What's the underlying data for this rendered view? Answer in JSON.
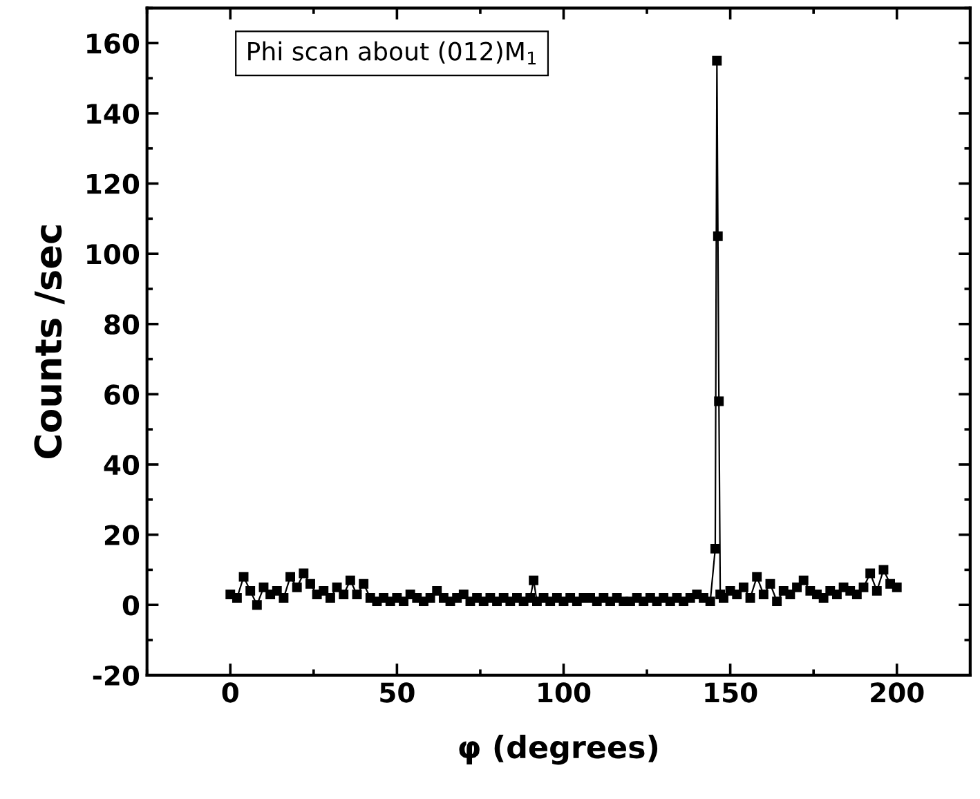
{
  "chart_data": {
    "type": "line",
    "xlabel": "φ (degrees)",
    "ylabel": "Counts /sec",
    "annotations": [
      "Phi scan about (012)M$_{1}$"
    ],
    "xlim": [
      -25,
      222
    ],
    "xticks": [
      0,
      50,
      100,
      150,
      200
    ],
    "ylim": [
      -20,
      170
    ],
    "yticks": [
      -20,
      0,
      20,
      40,
      60,
      80,
      100,
      120,
      140,
      160
    ],
    "grid": false,
    "legend": false,
    "marker": "square",
    "line_style": "solid",
    "series": [
      {
        "color": "#000000",
        "x": [
          0,
          2,
          4,
          6,
          8,
          10,
          12,
          14,
          16,
          18,
          20,
          22,
          24,
          26,
          28,
          30,
          32,
          34,
          36,
          38,
          40,
          42,
          44,
          46,
          48,
          50,
          52,
          54,
          56,
          58,
          60,
          62,
          64,
          66,
          68,
          70,
          72,
          74,
          76,
          78,
          80,
          82,
          84,
          86,
          88,
          90,
          91,
          92,
          94,
          96,
          98,
          100,
          102,
          104,
          106,
          108,
          110,
          112,
          114,
          116,
          118,
          120,
          122,
          124,
          126,
          128,
          130,
          132,
          134,
          136,
          138,
          140,
          142,
          144,
          145.5,
          146,
          146.3,
          146.6,
          147,
          148,
          150,
          152,
          154,
          156,
          158,
          160,
          162,
          164,
          166,
          168,
          170,
          172,
          174,
          176,
          178,
          180,
          182,
          184,
          186,
          188,
          190,
          192,
          194,
          196,
          198,
          200
        ],
        "values": [
          3,
          2,
          8,
          4,
          0,
          5,
          3,
          4,
          2,
          8,
          5,
          9,
          6,
          3,
          4,
          2,
          5,
          3,
          7,
          3,
          6,
          2,
          1,
          2,
          1,
          2,
          1,
          3,
          2,
          1,
          2,
          4,
          2,
          1,
          2,
          3,
          1,
          2,
          1,
          2,
          1,
          2,
          1,
          2,
          1,
          2,
          7,
          1,
          2,
          1,
          2,
          1,
          2,
          1,
          2,
          2,
          1,
          2,
          1,
          2,
          1,
          1,
          2,
          1,
          2,
          1,
          2,
          1,
          2,
          1,
          2,
          3,
          2,
          1,
          16,
          155,
          105,
          58,
          3,
          2,
          4,
          3,
          5,
          2,
          8,
          3,
          6,
          1,
          4,
          3,
          5,
          7,
          4,
          3,
          2,
          4,
          3,
          5,
          4,
          3,
          5,
          9,
          4,
          10,
          6,
          5
        ]
      }
    ]
  }
}
